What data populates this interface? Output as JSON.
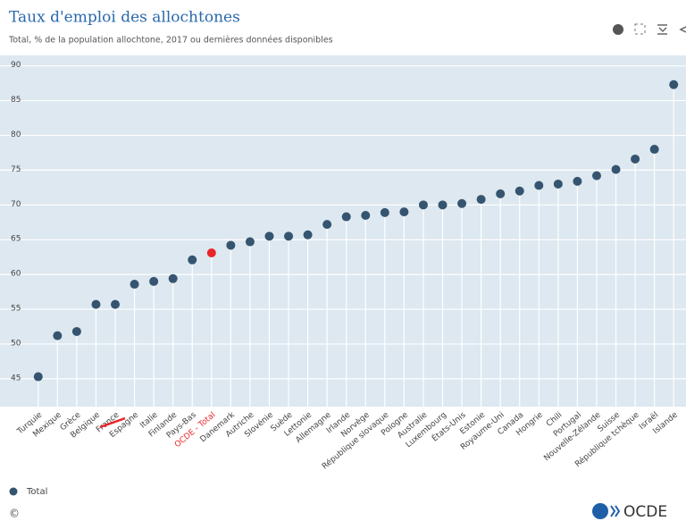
{
  "chart_data": {
    "type": "lollipop",
    "title": "Taux d'emploi des allochtones",
    "subtitle": "Total, % de la population allochtone, 2017 ou dernières données disponibles",
    "categories": [
      "Turquie",
      "Mexique",
      "Grèce",
      "Belgique",
      "France",
      "Espagne",
      "Italie",
      "Finlande",
      "Pays-Bas",
      "OCDE - Total",
      "Danemark",
      "Autriche",
      "Slovénie",
      "Suède",
      "Lettonie",
      "Allemagne",
      "Irlande",
      "Norvège",
      "République slovaque",
      "Pologne",
      "Australie",
      "Luxembourg",
      "États-Unis",
      "Estonie",
      "Royaume-Uni",
      "Canada",
      "Hongrie",
      "Chili",
      "Portugal",
      "Nouvelle-Zélande",
      "Suisse",
      "République tchèque",
      "Israël",
      "Islande"
    ],
    "series": [
      {
        "name": "Total",
        "color": "#35546f",
        "values": [
          45.3,
          51.2,
          51.8,
          55.7,
          55.7,
          58.6,
          59.0,
          59.4,
          62.1,
          63.1,
          64.2,
          64.7,
          65.5,
          65.5,
          65.7,
          67.2,
          68.3,
          68.5,
          68.9,
          69.0,
          70.0,
          70.0,
          70.2,
          70.8,
          71.6,
          72.0,
          72.8,
          73.0,
          73.4,
          74.2,
          75.1,
          76.6,
          78.0,
          87.3
        ],
        "point_colors": [
          "#35546f",
          "#35546f",
          "#35546f",
          "#35546f",
          "#35546f",
          "#35546f",
          "#35546f",
          "#35546f",
          "#35546f",
          "#e8262a",
          "#35546f",
          "#35546f",
          "#35546f",
          "#35546f",
          "#35546f",
          "#35546f",
          "#35546f",
          "#35546f",
          "#35546f",
          "#35546f",
          "#35546f",
          "#35546f",
          "#35546f",
          "#35546f",
          "#35546f",
          "#35546f",
          "#35546f",
          "#35546f",
          "#35546f",
          "#35546f",
          "#35546f",
          "#35546f",
          "#35546f",
          "#35546f"
        ]
      }
    ],
    "ylim": [
      41,
      91.5
    ],
    "yticks": [
      45,
      50,
      55,
      60,
      65,
      70,
      75,
      80,
      85,
      90
    ],
    "grid": true,
    "copyright": "©",
    "logo": "OCDE"
  }
}
